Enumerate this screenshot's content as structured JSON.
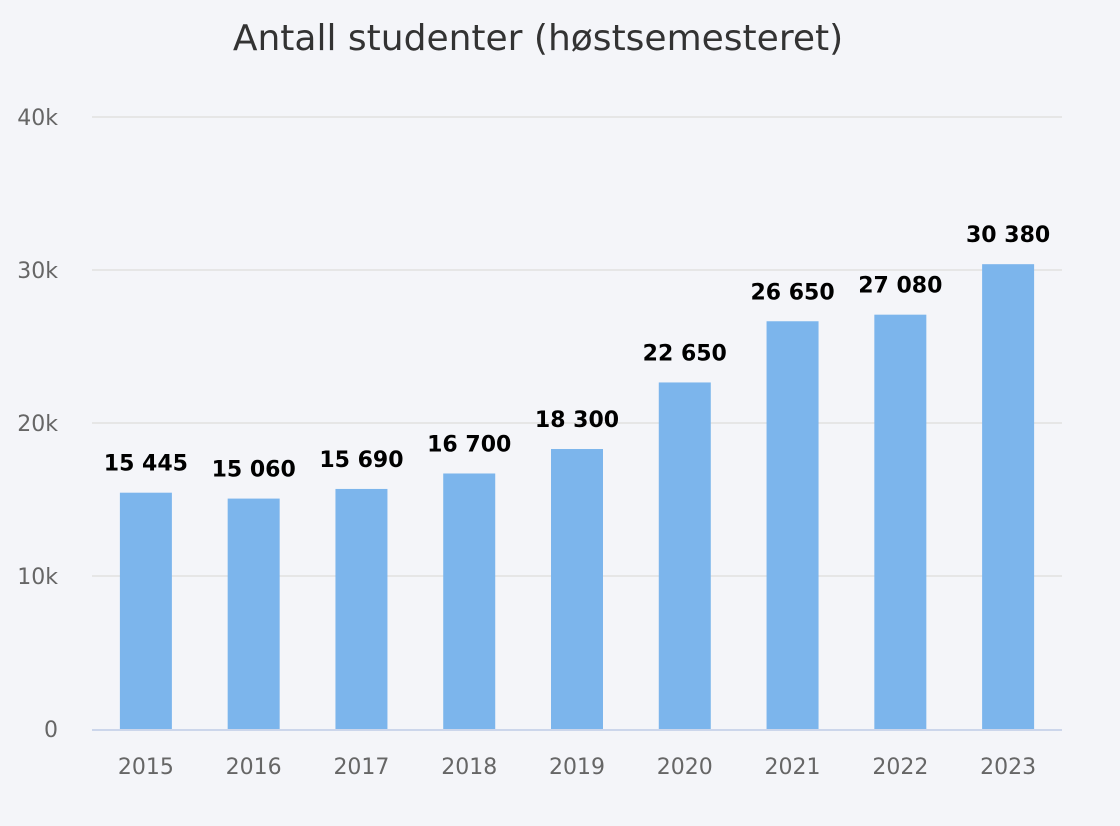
{
  "chart_data": {
    "type": "bar",
    "title": "Antall studenter (høstsemesteret)",
    "xlabel": "",
    "ylabel": "",
    "categories": [
      "2015",
      "2016",
      "2017",
      "2018",
      "2019",
      "2020",
      "2021",
      "2022",
      "2023"
    ],
    "values": [
      15445,
      15060,
      15690,
      16700,
      18300,
      22650,
      26650,
      27080,
      30380
    ],
    "data_labels": [
      "15 445",
      "15 060",
      "15 690",
      "16 700",
      "18 300",
      "22 650",
      "26 650",
      "27 080",
      "30 380"
    ],
    "ylim": [
      0,
      40000
    ],
    "yticks": [
      0,
      10000,
      20000,
      30000,
      40000
    ],
    "ytick_labels": [
      "0",
      "10k",
      "20k",
      "30k",
      "40k"
    ],
    "grid": true,
    "legend": "none",
    "colors": {
      "bar": "#7cb5ec",
      "grid": "#e6e6e6",
      "axis_line": "#ccd6eb",
      "tick_text": "#666666",
      "label_text": "#000000",
      "background": "#f4f5f9"
    }
  }
}
